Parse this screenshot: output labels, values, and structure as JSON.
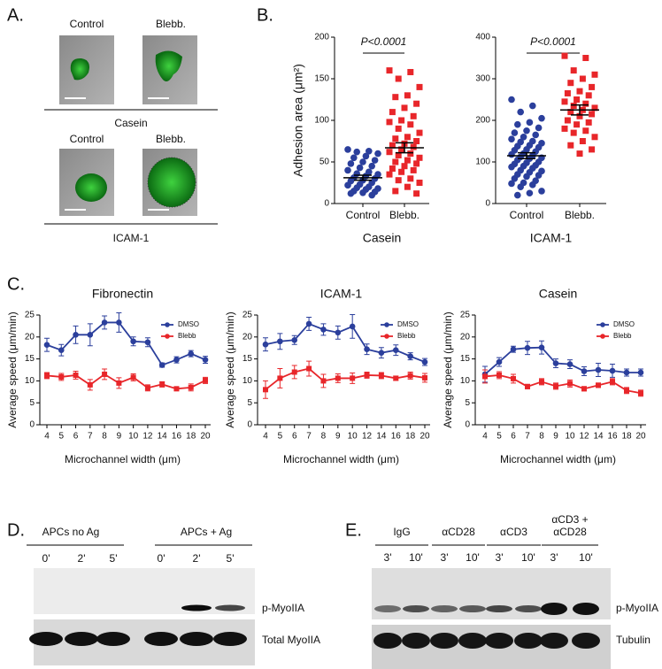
{
  "panels": {
    "A": "A.",
    "B": "B.",
    "C": "C.",
    "D": "D.",
    "E": "E."
  },
  "panel_a": {
    "rows": [
      {
        "labels": [
          "Control",
          "Blebb."
        ],
        "substrate": "Casein"
      },
      {
        "labels": [
          "Control",
          "Blebb."
        ],
        "substrate": "ICAM-1"
      }
    ]
  },
  "chart_data": [
    {
      "type": "strip",
      "ylabel": "Adhesion area (μm²)",
      "xlabel": "Casein",
      "annotation": "P<0.0001",
      "categories": [
        "Control",
        "Blebb."
      ],
      "colors": [
        "#2b3f9c",
        "#e8262a"
      ],
      "points": [
        [
          65,
          63,
          62,
          60,
          57,
          55,
          52,
          50,
          48,
          45,
          43,
          40,
          38,
          36,
          35,
          33,
          31,
          30,
          28,
          27,
          25,
          23,
          22,
          20,
          19,
          18,
          17,
          15,
          14,
          13,
          12,
          10
        ],
        [
          160,
          158,
          150,
          140,
          130,
          128,
          120,
          115,
          110,
          105,
          100,
          98,
          95,
          90,
          85,
          80,
          78,
          75,
          72,
          70,
          68,
          65,
          62,
          60,
          58,
          55,
          52,
          50,
          48,
          45,
          42,
          40,
          38,
          35,
          30,
          28,
          25,
          20,
          15,
          12
        ]
      ],
      "means": [
        31,
        67
      ],
      "sems": [
        3,
        6
      ],
      "ylim": [
        0,
        200
      ],
      "yticks": [
        0,
        50,
        100,
        150,
        200
      ]
    },
    {
      "type": "strip",
      "xlabel": "ICAM-1",
      "annotation": "P<0.0001",
      "categories": [
        "Control",
        "Blebb."
      ],
      "colors": [
        "#2b3f9c",
        "#e8262a"
      ],
      "points": [
        [
          250,
          235,
          220,
          205,
          195,
          190,
          182,
          175,
          170,
          165,
          160,
          155,
          150,
          148,
          145,
          140,
          138,
          135,
          130,
          128,
          125,
          120,
          118,
          115,
          112,
          110,
          108,
          105,
          100,
          98,
          95,
          92,
          90,
          88,
          85,
          80,
          78,
          75,
          70,
          68,
          65,
          60,
          55,
          50,
          48,
          45,
          40,
          30,
          25,
          20
        ],
        [
          355,
          350,
          320,
          310,
          300,
          290,
          280,
          270,
          265,
          260,
          250,
          245,
          240,
          235,
          230,
          225,
          220,
          215,
          210,
          200,
          195,
          190,
          180,
          175,
          170,
          160,
          150,
          140,
          130,
          120
        ]
      ],
      "means": [
        115,
        225
      ],
      "sems": [
        7,
        12
      ],
      "ylim": [
        0,
        400
      ],
      "yticks": [
        0,
        100,
        200,
        300,
        400
      ]
    },
    {
      "type": "line",
      "title": "Fibronectin",
      "ylabel": "Average speed (μm/min)",
      "xlabel": "Microchannel width (μm)",
      "categories": [
        "4",
        "5",
        "6",
        "7",
        "8",
        "9",
        "10",
        "12",
        "14",
        "16",
        "18",
        "20"
      ],
      "ylim": [
        0,
        25
      ],
      "yticks": [
        0,
        5,
        10,
        15,
        20,
        25
      ],
      "series": [
        {
          "name": "DMSO",
          "color": "#2b3f9c",
          "values": [
            18.2,
            17,
            20.5,
            20.5,
            23.3,
            23.3,
            19,
            18.8,
            13.6,
            14.8,
            16.2,
            14.8
          ],
          "errors": [
            1.5,
            1.3,
            2,
            2.5,
            1.5,
            2.2,
            1,
            1,
            0.5,
            0.7,
            0.7,
            0.8
          ]
        },
        {
          "name": "Blebb",
          "color": "#e8262a",
          "values": [
            11.2,
            10.9,
            11.3,
            9.1,
            11.5,
            9.5,
            10.8,
            8.4,
            9.2,
            8.2,
            8.5,
            10.1
          ],
          "errors": [
            0.7,
            0.8,
            0.9,
            1.2,
            1.2,
            1.2,
            0.8,
            0.7,
            0.6,
            0.4,
            0.8,
            0.7
          ]
        }
      ]
    },
    {
      "type": "line",
      "title": "ICAM-1",
      "ylabel": "Average speed (μm/min)",
      "xlabel": "Microchannel width (μm)",
      "categories": [
        "4",
        "5",
        "6",
        "7",
        "8",
        "9",
        "10",
        "12",
        "14",
        "16",
        "18",
        "20"
      ],
      "ylim": [
        0,
        25
      ],
      "yticks": [
        0,
        5,
        10,
        15,
        20,
        25
      ],
      "series": [
        {
          "name": "DMSO",
          "color": "#2b3f9c",
          "values": [
            18.3,
            19,
            19.3,
            23,
            21.7,
            21,
            22.4,
            17.2,
            16.4,
            17,
            15.6,
            14.3
          ],
          "errors": [
            1.5,
            1.8,
            1,
            1.5,
            1.3,
            1.5,
            2.7,
            1.2,
            1.2,
            1.2,
            0.8,
            0.8
          ]
        },
        {
          "name": "Blebb",
          "color": "#e8262a",
          "values": [
            8,
            10.6,
            12,
            12.8,
            10,
            10.6,
            10.6,
            11.3,
            11.2,
            10.6,
            11.2,
            10.7
          ],
          "errors": [
            2,
            2.2,
            1.5,
            1.7,
            1.5,
            1,
            1.2,
            0.7,
            0.7,
            0.5,
            0.8,
            1
          ]
        }
      ]
    },
    {
      "type": "line",
      "title": "Casein",
      "ylabel": "Average speed (μm/min)",
      "xlabel": "Microchannel width (μm)",
      "categories": [
        "4",
        "5",
        "6",
        "7",
        "8",
        "9",
        "10",
        "12",
        "14",
        "16",
        "18",
        "20"
      ],
      "ylim": [
        0,
        25
      ],
      "yticks": [
        0,
        5,
        10,
        15,
        20,
        25
      ],
      "series": [
        {
          "name": "DMSO",
          "color": "#2b3f9c",
          "values": [
            11.5,
            14.3,
            17.2,
            17.5,
            17.6,
            14,
            13.8,
            12.2,
            12.5,
            12.3,
            11.9,
            11.9
          ],
          "errors": [
            1.8,
            1,
            0.7,
            1.5,
            1.5,
            1,
            1,
            1,
            1.5,
            1.5,
            0.8,
            0.8
          ]
        },
        {
          "name": "Blebb",
          "color": "#e8262a",
          "values": [
            11,
            11.3,
            10.5,
            8.7,
            9.8,
            8.8,
            9.4,
            8.2,
            9,
            9.8,
            7.8,
            7.2
          ],
          "errors": [
            1.5,
            0.8,
            1,
            0.5,
            0.7,
            0.7,
            0.8,
            0.5,
            0.5,
            0.7,
            0.7,
            0.7
          ]
        }
      ]
    }
  ],
  "panel_d": {
    "groups": [
      "APCs no Ag",
      "APCs + Ag"
    ],
    "times": [
      "0'",
      "2'",
      "5'",
      "0'",
      "2'",
      "5'"
    ],
    "rows": [
      "p-MyoIIA",
      "Total MyoIIA"
    ]
  },
  "panel_e": {
    "groups": [
      [
        "IgG"
      ],
      [
        "αCD28"
      ],
      [
        "αCD3"
      ],
      [
        "αCD3 +",
        "αCD28"
      ]
    ],
    "times": [
      "3'",
      "10'",
      "3'",
      "10'",
      "3'",
      "10'",
      "3'",
      "10'"
    ],
    "rows": [
      "p-MyoIIA",
      "Tubulin"
    ]
  }
}
